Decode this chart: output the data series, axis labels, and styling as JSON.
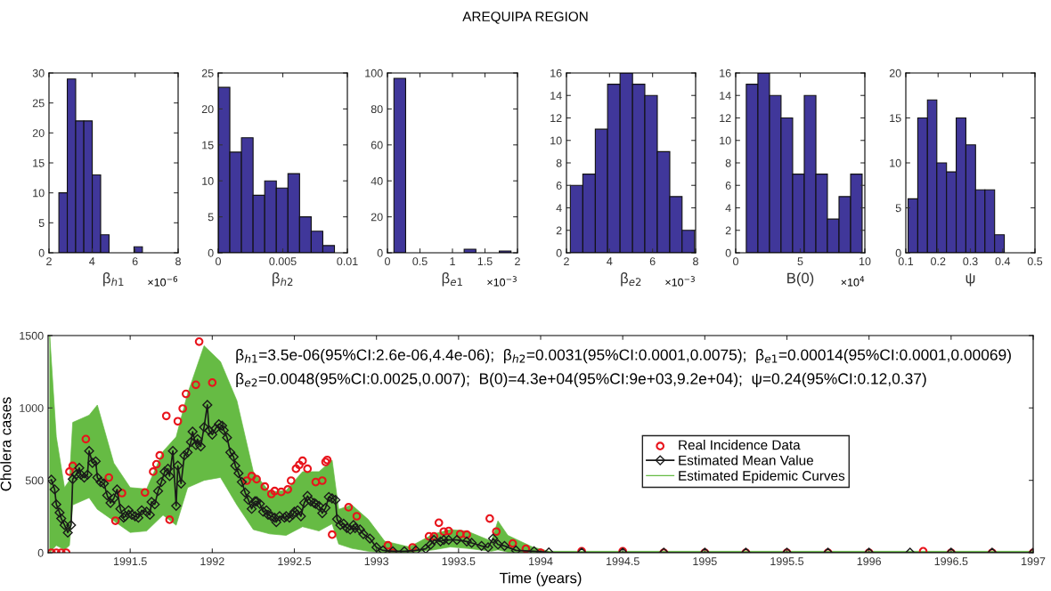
{
  "chart_data": [
    {
      "type": "histogram",
      "xlabel": "β$_{h1}$",
      "annotations": [
        "×10$^{−6}$"
      ],
      "color": "#40379a",
      "bins": [
        2.46,
        2.85,
        3.24,
        3.62,
        4.01,
        4.4,
        4.79,
        5.18,
        5.56,
        5.95,
        6.34
      ],
      "values": [
        10,
        29,
        22,
        22,
        13,
        3,
        0,
        0,
        0,
        1
      ],
      "xlim": [
        2,
        8
      ],
      "xticks": [
        2,
        4,
        6,
        8
      ],
      "ylim": [
        0,
        30
      ],
      "yticks": [
        0,
        5,
        10,
        15,
        20,
        25,
        30
      ]
    },
    {
      "type": "histogram",
      "xlabel": "β$_{h2}$",
      "color": "#40379a",
      "bins": [
        0,
        0.0009,
        0.0018,
        0.0027,
        0.0036,
        0.0045,
        0.0054,
        0.0063,
        0.0072,
        0.0081,
        0.009
      ],
      "values": [
        23,
        14,
        16,
        8,
        10,
        9,
        11,
        5,
        3,
        1
      ],
      "xlim": [
        0,
        0.01
      ],
      "xticks": [
        0,
        0.005,
        0.01
      ],
      "ylim": [
        0,
        25
      ],
      "yticks": [
        0,
        5,
        10,
        15,
        20,
        25
      ]
    },
    {
      "type": "histogram",
      "title": "AREQUIPA REGION",
      "xlabel": "β$_{e1}$",
      "annotations": [
        "×10$^{−3}$"
      ],
      "color": "#40379a",
      "bins": [
        0.1,
        0.28,
        0.46,
        0.64,
        0.82,
        1.0,
        1.18,
        1.36,
        1.54,
        1.72,
        1.9
      ],
      "values": [
        97,
        0,
        0,
        0,
        0,
        0,
        2,
        0,
        0,
        1
      ],
      "xlim": [
        0,
        2
      ],
      "xticks": [
        0,
        0.5,
        1,
        1.5,
        2
      ],
      "ylim": [
        0,
        100
      ],
      "yticks": [
        0,
        20,
        40,
        60,
        80,
        100
      ]
    },
    {
      "type": "histogram",
      "xlabel": "β$_{e2}$",
      "annotations": [
        "×10$^{−3}$"
      ],
      "color": "#40379a",
      "bins": [
        2.18,
        2.76,
        3.34,
        3.91,
        4.49,
        5.07,
        5.64,
        6.22,
        6.8,
        7.37,
        7.95
      ],
      "values": [
        6,
        7,
        11,
        15,
        16,
        15,
        14,
        9,
        5,
        2
      ],
      "xlim": [
        2,
        8
      ],
      "xticks": [
        2,
        4,
        6,
        8
      ],
      "ylim": [
        0,
        16
      ],
      "yticks": [
        0,
        2,
        4,
        6,
        8,
        10,
        12,
        14,
        16
      ]
    },
    {
      "type": "histogram",
      "xlabel": "B(0)",
      "annotations": [
        "×10$^{4}$"
      ],
      "color": "#40379a",
      "bins": [
        0.82,
        1.72,
        2.62,
        3.51,
        4.41,
        5.31,
        6.21,
        7.1,
        8.0,
        8.9,
        9.79
      ],
      "values": [
        15,
        16,
        14,
        12,
        7,
        14,
        7,
        3,
        5,
        7
      ],
      "xlim": [
        0,
        10
      ],
      "xticks": [
        0,
        5,
        10
      ],
      "ylim": [
        0,
        16
      ],
      "yticks": [
        0,
        2,
        4,
        6,
        8,
        10,
        12,
        14,
        16
      ]
    },
    {
      "type": "histogram",
      "xlabel": "ψ",
      "color": "#40379a",
      "bins": [
        0.107,
        0.137,
        0.167,
        0.196,
        0.226,
        0.256,
        0.286,
        0.316,
        0.345,
        0.375,
        0.405
      ],
      "values": [
        6,
        15,
        17,
        10,
        9,
        15,
        12,
        7,
        7,
        2
      ],
      "xlim": [
        0.1,
        0.5
      ],
      "xticks": [
        0.1,
        0.2,
        0.3,
        0.4,
        0.5
      ],
      "ylim": [
        0,
        20
      ],
      "yticks": [
        0,
        5,
        10,
        15,
        20
      ]
    },
    {
      "type": "line",
      "xlabel": "Time (years)",
      "ylabel": "Cholera cases",
      "annotations": [
        "β$_{h1}$=3.5e-06(95%CI:2.6e-06,4.4e-06);  β$_{h2}$=0.0031(95%CI:0.0001,0.0075);  β$_{e1}$=0.00014(95%CI:0.0001,0.00069)",
        "β$_{e2}$=0.0048(95%CI:0.0025,0.007);  B(0)=4.3e+04(95%CI:9e+03,9.2e+04);  ψ=0.24(95%CI:0.12,0.37)"
      ],
      "xlim": [
        1991.0,
        1997
      ],
      "xticks": [
        1991.5,
        1992,
        1992.5,
        1993,
        1993.5,
        1994,
        1994.5,
        1995,
        1995.5,
        1996,
        1996.5,
        1997
      ],
      "ylim": [
        0,
        1500
      ],
      "yticks": [
        0,
        500,
        1000,
        1500
      ],
      "legend": "right",
      "series": [
        {
          "name": "Estimated Epidemic Curves",
          "type": "area",
          "color": "#66bb44",
          "x": [
            1991.01,
            1991.05,
            1991.1,
            1991.13,
            1991.15,
            1991.25,
            1991.3,
            1991.4,
            1991.5,
            1991.6,
            1991.7,
            1991.78,
            1991.85,
            1991.95,
            1992.05,
            1992.15,
            1992.25,
            1992.35,
            1992.45,
            1992.55,
            1992.65,
            1992.73,
            1992.77,
            1992.85,
            1992.95,
            1993.05,
            1993.2,
            1993.35,
            1993.45,
            1993.55,
            1993.7,
            1993.74,
            1993.8,
            1993.95,
            1994.05,
            1997
          ],
          "values": [
            null,
            null,
            null,
            null,
            null,
            null,
            null,
            null,
            null,
            null,
            null,
            null,
            null,
            null,
            null,
            null,
            null,
            null,
            null,
            null,
            null,
            null,
            null,
            null,
            null,
            null,
            null,
            null,
            null,
            null,
            null,
            null,
            null,
            null,
            null,
            null
          ],
          "lower": [
            0,
            50,
            20,
            50,
            330,
            380,
            300,
            220,
            140,
            150,
            260,
            190,
            450,
            500,
            520,
            330,
            160,
            130,
            120,
            180,
            150,
            200,
            60,
            30,
            10,
            0,
            0,
            20,
            40,
            30,
            10,
            20,
            5,
            0,
            0,
            0
          ],
          "upper": [
            1500,
            800,
            450,
            500,
            900,
            950,
            1020,
            620,
            450,
            440,
            700,
            800,
            1100,
            1430,
            1320,
            1050,
            560,
            420,
            430,
            560,
            560,
            640,
            300,
            330,
            230,
            80,
            40,
            130,
            160,
            150,
            80,
            220,
            120,
            40,
            10,
            10
          ]
        },
        {
          "name": "Real Incidence Data",
          "type": "scatter",
          "marker": "circle",
          "color": "#e8141c",
          "x": [
            1991.02,
            1991.05,
            1991.08,
            1991.11,
            1991.13,
            1991.15,
            1991.23,
            1991.37,
            1991.41,
            1991.45,
            1991.59,
            1991.64,
            1991.66,
            1991.68,
            1991.72,
            1991.74,
            1991.79,
            1991.82,
            1991.84,
            1991.9,
            1991.92,
            1992.0,
            1992.21,
            1992.24,
            1992.27,
            1992.32,
            1992.36,
            1992.38,
            1992.42,
            1992.46,
            1992.48,
            1992.51,
            1992.53,
            1992.55,
            1992.58,
            1992.63,
            1992.67,
            1992.69,
            1992.7,
            1992.73,
            1992.83,
            1992.88,
            1993.07,
            1993.1,
            1993.22,
            1993.32,
            1993.35,
            1993.38,
            1993.41,
            1993.44,
            1993.51,
            1993.55,
            1993.69,
            1993.73,
            1993.83,
            1993.91,
            1994.0,
            1994.25,
            1994.5,
            1994.75,
            1995.0,
            1995.25,
            1995.5,
            1995.75,
            1996.0,
            1996.33,
            1996.5,
            1996.75,
            1997.0
          ],
          "values": [
            0,
            0,
            0,
            0,
            560,
            600,
            785,
            519,
            221,
            412,
            416,
            560,
            611,
            672,
            945,
            228,
            908,
            996,
            1097,
            1160,
            1458,
            1175,
            498,
            529,
            508,
            457,
            406,
            426,
            420,
            437,
            498,
            580,
            607,
            635,
            580,
            488,
            498,
            627,
            641,
            125,
            314,
            252,
            51,
            0,
            37,
            113,
            113,
            207,
            146,
            150,
            129,
            125,
            236,
            146,
            64,
            27,
            0,
            10,
            10,
            0,
            0,
            0,
            0,
            0,
            0,
            10,
            0,
            0,
            0
          ]
        },
        {
          "name": "Estimated Mean Value",
          "type": "line",
          "marker": "diamond",
          "color": "#1a1a1a",
          "x": [
            1991.02,
            1991.04,
            1991.05,
            1991.07,
            1991.08,
            1991.1,
            1991.12,
            1991.14,
            1991.15,
            1991.17,
            1991.19,
            1991.2,
            1991.22,
            1991.24,
            1991.25,
            1991.27,
            1991.29,
            1991.3,
            1991.32,
            1991.34,
            1991.36,
            1991.38,
            1991.4,
            1991.42,
            1991.44,
            1991.46,
            1991.47,
            1991.49,
            1991.51,
            1991.53,
            1991.55,
            1991.57,
            1991.6,
            1991.62,
            1991.63,
            1991.65,
            1991.67,
            1991.69,
            1991.71,
            1991.73,
            1991.74,
            1991.76,
            1991.78,
            1991.79,
            1991.81,
            1991.83,
            1991.85,
            1991.87,
            1991.88,
            1991.9,
            1991.91,
            1991.93,
            1991.95,
            1991.97,
            1991.98,
            1992.0,
            1992.02,
            1992.04,
            1992.06,
            1992.07,
            1992.09,
            1992.11,
            1992.13,
            1992.14,
            1992.16,
            1992.18,
            1992.2,
            1992.22,
            1992.24,
            1992.26,
            1992.27,
            1992.29,
            1992.31,
            1992.33,
            1992.34,
            1992.36,
            1992.38,
            1992.39,
            1992.41,
            1992.44,
            1992.45,
            1992.47,
            1992.49,
            1992.5,
            1992.52,
            1992.54,
            1992.56,
            1992.58,
            1992.6,
            1992.62,
            1992.63,
            1992.65,
            1992.67,
            1992.69,
            1992.71,
            1992.73,
            1992.75,
            1992.76,
            1992.78,
            1992.8,
            1992.82,
            1992.84,
            1992.86,
            1992.87,
            1992.9,
            1992.92,
            1992.96,
            1993.0,
            1993.04,
            1993.1,
            1993.17,
            1993.24,
            1993.3,
            1993.33,
            1993.35,
            1993.39,
            1993.41,
            1993.44,
            1993.49,
            1993.55,
            1993.58,
            1993.64,
            1993.68,
            1993.71,
            1993.74,
            1993.78,
            1993.85,
            1993.96,
            1994.05,
            1994.25,
            1994.5,
            1994.75,
            1995.0,
            1995.25,
            1995.5,
            1995.75,
            1996.0,
            1996.25,
            1996.5,
            1996.75,
            1997.0
          ],
          "values": [
            504,
            437,
            334,
            277,
            236,
            191,
            139,
            191,
            508,
            539,
            586,
            539,
            519,
            539,
            703,
            621,
            631,
            519,
            488,
            478,
            396,
            344,
            375,
            437,
            303,
            242,
            252,
            293,
            262,
            252,
            242,
            293,
            283,
            262,
            351,
            334,
            426,
            488,
            560,
            580,
            529,
            703,
            324,
            601,
            478,
            672,
            693,
            765,
            836,
            744,
            785,
            734,
            867,
            1021,
            846,
            816,
            857,
            888,
            877,
            846,
            795,
            693,
            662,
            601,
            549,
            488,
            416,
            365,
            303,
            355,
            355,
            338,
            283,
            293,
            262,
            252,
            242,
            211,
            252,
            242,
            252,
            242,
            262,
            283,
            293,
            252,
            344,
            392,
            355,
            344,
            338,
            324,
            273,
            310,
            385,
            375,
            365,
            232,
            191,
            201,
            170,
            160,
            191,
            170,
            160,
            129,
            98,
            37,
            16,
            10,
            10,
            16,
            27,
            57,
            88,
            78,
            88,
            88,
            88,
            78,
            68,
            47,
            37,
            98,
            57,
            47,
            16,
            10,
            2,
            0,
            0,
            0,
            0,
            0,
            0,
            0,
            0,
            0,
            0,
            0,
            0
          ]
        }
      ]
    }
  ]
}
